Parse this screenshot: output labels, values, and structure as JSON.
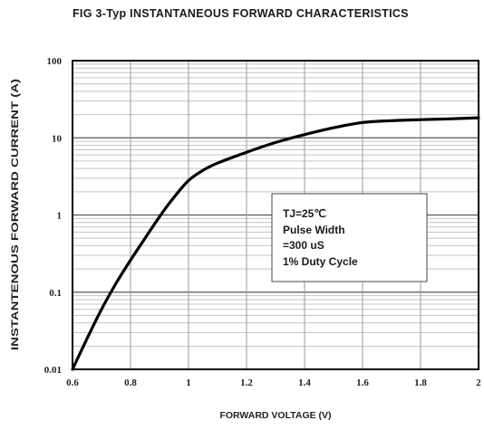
{
  "chart_data": {
    "type": "line",
    "title": "FIG 3-Typ INSTANTANEOUS  FORWARD CHARACTERISTICS",
    "xlabel": "FORWARD VOLTAGE (V)",
    "ylabel": "INSTANTENOUS FORWARD CURRENT (A)",
    "xlim": [
      0.6,
      2.0
    ],
    "ylim": [
      0.01,
      100
    ],
    "yscale": "log",
    "grid": true,
    "x_ticks": [
      "0.6",
      "0.8",
      "1",
      "1.2",
      "1.4",
      "1.6",
      "1.8",
      "2"
    ],
    "y_ticks": [
      "0.01",
      "0.1",
      "1",
      "10",
      "100"
    ],
    "series": [
      {
        "x": [
          0.6,
          0.65,
          0.7,
          0.75,
          0.8,
          0.85,
          0.9,
          0.95,
          1.0,
          1.05,
          1.1,
          1.2,
          1.3,
          1.4,
          1.5,
          1.6,
          1.7,
          1.8,
          1.9,
          2.0
        ],
        "y": [
          0.01,
          0.025,
          0.06,
          0.13,
          0.26,
          0.5,
          0.95,
          1.7,
          2.8,
          3.8,
          4.7,
          6.5,
          8.7,
          11.0,
          13.5,
          15.8,
          16.7,
          17.2,
          17.6,
          18.2
        ]
      }
    ],
    "annotations": [
      "TJ=25℃",
      "Pulse Width",
      "=300 uS",
      "1% Duty Cycle"
    ]
  }
}
